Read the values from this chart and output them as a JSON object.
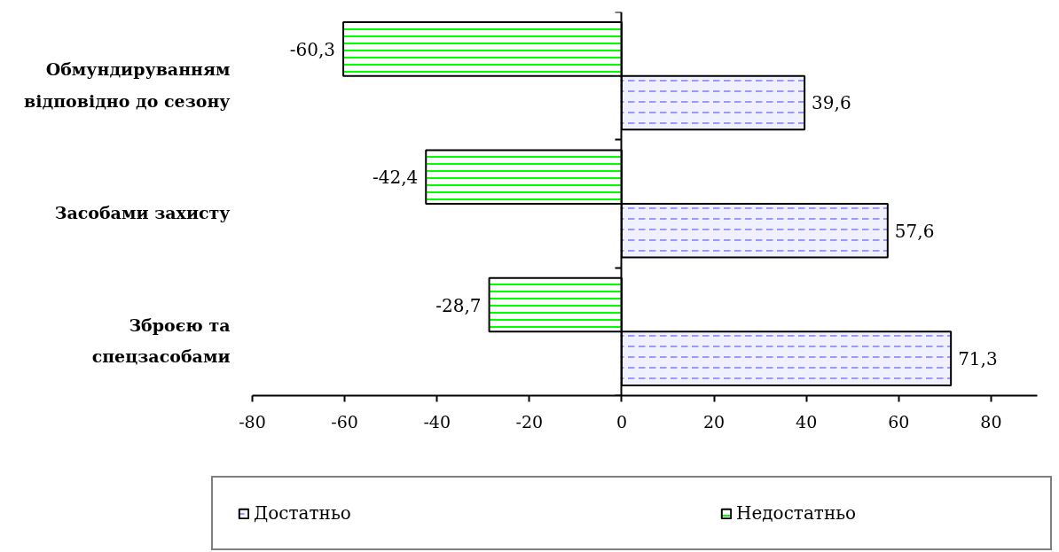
{
  "chart_data": {
    "type": "bar",
    "orientation": "horizontal",
    "categories": [
      "Обмундируванням відповідно до сезону",
      "Засобами захисту",
      "Зброєю та спецзасобами"
    ],
    "series": [
      {
        "name": "Достатньо",
        "color": "#9999ff",
        "values": [
          39.6,
          57.6,
          71.3
        ],
        "value_labels": [
          "39,6",
          "57,6",
          "71,3"
        ]
      },
      {
        "name": "Недостатньо",
        "color": "#00ff00",
        "values": [
          -60.3,
          -42.4,
          -28.7
        ],
        "value_labels": [
          "-60,3",
          "-42,4",
          "-28,7"
        ]
      }
    ],
    "xlim": [
      -80,
      90
    ],
    "xticks": [
      -80,
      -60,
      -40,
      -20,
      0,
      20,
      40,
      60,
      80
    ],
    "legend": "bottom"
  }
}
